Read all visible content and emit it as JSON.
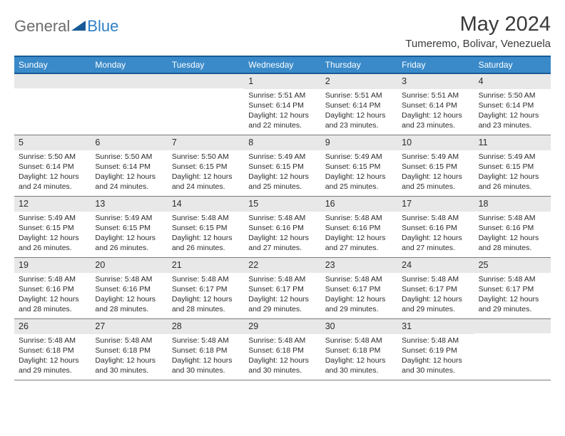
{
  "logo": {
    "part1": "General",
    "part2": "Blue"
  },
  "title": "May 2024",
  "location": "Tumeremo, Bolivar, Venezuela",
  "weekdays": [
    "Sunday",
    "Monday",
    "Tuesday",
    "Wednesday",
    "Thursday",
    "Friday",
    "Saturday"
  ],
  "colors": {
    "header_bg": "#3a8ac9",
    "header_border": "#185a97",
    "daynum_bg": "#e8e8e8",
    "text": "#2b2b2b"
  },
  "days": [
    {
      "n": "",
      "lines": []
    },
    {
      "n": "",
      "lines": []
    },
    {
      "n": "",
      "lines": []
    },
    {
      "n": "1",
      "lines": [
        "Sunrise: 5:51 AM",
        "Sunset: 6:14 PM",
        "Daylight: 12 hours",
        "and 22 minutes."
      ]
    },
    {
      "n": "2",
      "lines": [
        "Sunrise: 5:51 AM",
        "Sunset: 6:14 PM",
        "Daylight: 12 hours",
        "and 23 minutes."
      ]
    },
    {
      "n": "3",
      "lines": [
        "Sunrise: 5:51 AM",
        "Sunset: 6:14 PM",
        "Daylight: 12 hours",
        "and 23 minutes."
      ]
    },
    {
      "n": "4",
      "lines": [
        "Sunrise: 5:50 AM",
        "Sunset: 6:14 PM",
        "Daylight: 12 hours",
        "and 23 minutes."
      ]
    },
    {
      "n": "5",
      "lines": [
        "Sunrise: 5:50 AM",
        "Sunset: 6:14 PM",
        "Daylight: 12 hours",
        "and 24 minutes."
      ]
    },
    {
      "n": "6",
      "lines": [
        "Sunrise: 5:50 AM",
        "Sunset: 6:14 PM",
        "Daylight: 12 hours",
        "and 24 minutes."
      ]
    },
    {
      "n": "7",
      "lines": [
        "Sunrise: 5:50 AM",
        "Sunset: 6:15 PM",
        "Daylight: 12 hours",
        "and 24 minutes."
      ]
    },
    {
      "n": "8",
      "lines": [
        "Sunrise: 5:49 AM",
        "Sunset: 6:15 PM",
        "Daylight: 12 hours",
        "and 25 minutes."
      ]
    },
    {
      "n": "9",
      "lines": [
        "Sunrise: 5:49 AM",
        "Sunset: 6:15 PM",
        "Daylight: 12 hours",
        "and 25 minutes."
      ]
    },
    {
      "n": "10",
      "lines": [
        "Sunrise: 5:49 AM",
        "Sunset: 6:15 PM",
        "Daylight: 12 hours",
        "and 25 minutes."
      ]
    },
    {
      "n": "11",
      "lines": [
        "Sunrise: 5:49 AM",
        "Sunset: 6:15 PM",
        "Daylight: 12 hours",
        "and 26 minutes."
      ]
    },
    {
      "n": "12",
      "lines": [
        "Sunrise: 5:49 AM",
        "Sunset: 6:15 PM",
        "Daylight: 12 hours",
        "and 26 minutes."
      ]
    },
    {
      "n": "13",
      "lines": [
        "Sunrise: 5:49 AM",
        "Sunset: 6:15 PM",
        "Daylight: 12 hours",
        "and 26 minutes."
      ]
    },
    {
      "n": "14",
      "lines": [
        "Sunrise: 5:48 AM",
        "Sunset: 6:15 PM",
        "Daylight: 12 hours",
        "and 26 minutes."
      ]
    },
    {
      "n": "15",
      "lines": [
        "Sunrise: 5:48 AM",
        "Sunset: 6:16 PM",
        "Daylight: 12 hours",
        "and 27 minutes."
      ]
    },
    {
      "n": "16",
      "lines": [
        "Sunrise: 5:48 AM",
        "Sunset: 6:16 PM",
        "Daylight: 12 hours",
        "and 27 minutes."
      ]
    },
    {
      "n": "17",
      "lines": [
        "Sunrise: 5:48 AM",
        "Sunset: 6:16 PM",
        "Daylight: 12 hours",
        "and 27 minutes."
      ]
    },
    {
      "n": "18",
      "lines": [
        "Sunrise: 5:48 AM",
        "Sunset: 6:16 PM",
        "Daylight: 12 hours",
        "and 28 minutes."
      ]
    },
    {
      "n": "19",
      "lines": [
        "Sunrise: 5:48 AM",
        "Sunset: 6:16 PM",
        "Daylight: 12 hours",
        "and 28 minutes."
      ]
    },
    {
      "n": "20",
      "lines": [
        "Sunrise: 5:48 AM",
        "Sunset: 6:16 PM",
        "Daylight: 12 hours",
        "and 28 minutes."
      ]
    },
    {
      "n": "21",
      "lines": [
        "Sunrise: 5:48 AM",
        "Sunset: 6:17 PM",
        "Daylight: 12 hours",
        "and 28 minutes."
      ]
    },
    {
      "n": "22",
      "lines": [
        "Sunrise: 5:48 AM",
        "Sunset: 6:17 PM",
        "Daylight: 12 hours",
        "and 29 minutes."
      ]
    },
    {
      "n": "23",
      "lines": [
        "Sunrise: 5:48 AM",
        "Sunset: 6:17 PM",
        "Daylight: 12 hours",
        "and 29 minutes."
      ]
    },
    {
      "n": "24",
      "lines": [
        "Sunrise: 5:48 AM",
        "Sunset: 6:17 PM",
        "Daylight: 12 hours",
        "and 29 minutes."
      ]
    },
    {
      "n": "25",
      "lines": [
        "Sunrise: 5:48 AM",
        "Sunset: 6:17 PM",
        "Daylight: 12 hours",
        "and 29 minutes."
      ]
    },
    {
      "n": "26",
      "lines": [
        "Sunrise: 5:48 AM",
        "Sunset: 6:18 PM",
        "Daylight: 12 hours",
        "and 29 minutes."
      ]
    },
    {
      "n": "27",
      "lines": [
        "Sunrise: 5:48 AM",
        "Sunset: 6:18 PM",
        "Daylight: 12 hours",
        "and 30 minutes."
      ]
    },
    {
      "n": "28",
      "lines": [
        "Sunrise: 5:48 AM",
        "Sunset: 6:18 PM",
        "Daylight: 12 hours",
        "and 30 minutes."
      ]
    },
    {
      "n": "29",
      "lines": [
        "Sunrise: 5:48 AM",
        "Sunset: 6:18 PM",
        "Daylight: 12 hours",
        "and 30 minutes."
      ]
    },
    {
      "n": "30",
      "lines": [
        "Sunrise: 5:48 AM",
        "Sunset: 6:18 PM",
        "Daylight: 12 hours",
        "and 30 minutes."
      ]
    },
    {
      "n": "31",
      "lines": [
        "Sunrise: 5:48 AM",
        "Sunset: 6:19 PM",
        "Daylight: 12 hours",
        "and 30 minutes."
      ]
    },
    {
      "n": "",
      "lines": []
    }
  ]
}
